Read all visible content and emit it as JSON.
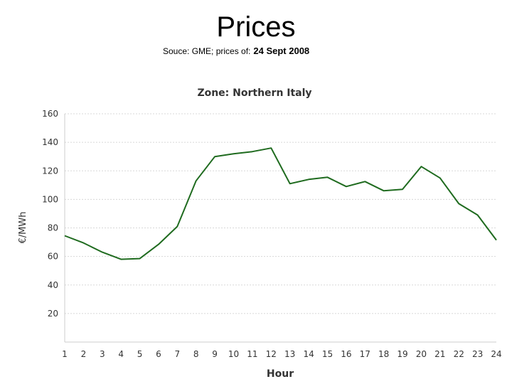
{
  "slide": {
    "title": "Prices",
    "subtitle_prefix": "Souce: GME; prices of:",
    "subtitle_date": "24 Sept 2008"
  },
  "chart_data": {
    "type": "line",
    "title": "Zone: Northern Italy",
    "xlabel": "Hour",
    "ylabel": "€/MWh",
    "x": [
      1,
      2,
      3,
      4,
      5,
      6,
      7,
      8,
      9,
      10,
      11,
      12,
      13,
      14,
      15,
      16,
      17,
      18,
      19,
      20,
      21,
      22,
      23,
      24
    ],
    "y_ticks": [
      20,
      40,
      60,
      80,
      100,
      120,
      140,
      160
    ],
    "ylim": [
      0,
      160
    ],
    "grid": true,
    "series": [
      {
        "values": [
          74.5,
          69.5,
          63,
          58,
          58.5,
          68.5,
          81,
          113,
          130,
          132,
          133.5,
          136,
          111,
          114,
          115.5,
          109,
          112.5,
          106,
          107,
          123,
          115,
          97,
          89,
          71.5
        ],
        "color": "#1f6b1f"
      }
    ]
  }
}
